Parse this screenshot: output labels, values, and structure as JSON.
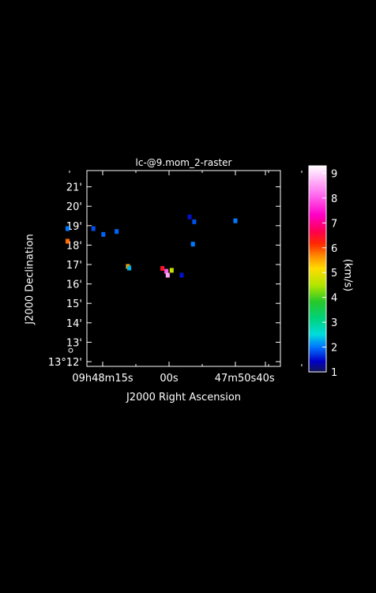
{
  "chart_data": {
    "type": "heatmap",
    "title": "lc-@9.mom_2-raster",
    "xlabel": "J2000 Right Ascension",
    "ylabel": "J2000 Declination",
    "colorbar_label": "(km/s)",
    "x_ticks": [
      "09h48m15s",
      "00s",
      "47m50s",
      "40s"
    ],
    "y_ticks": [
      "13°12'",
      "13'",
      "14'",
      "15'",
      "16'",
      "17'",
      "18'",
      "19'",
      "20'",
      "21'"
    ],
    "colorbar": {
      "min": 1,
      "max": 9.3,
      "ticks": [
        1,
        2,
        3,
        4,
        5,
        6,
        7,
        8,
        9
      ],
      "colormap": "rainbow"
    },
    "blobs": [
      {
        "ra_s": 15.3,
        "dec_min": 18.85,
        "value": 2.0
      },
      {
        "ra_s": 15.3,
        "dec_min": 18.2,
        "value": 5.8
      },
      {
        "ra_s": 11.4,
        "dec_min": 18.85,
        "value": 1.8
      },
      {
        "ra_s": 9.9,
        "dec_min": 18.55,
        "value": 1.9
      },
      {
        "ra_s": 7.9,
        "dec_min": 18.7,
        "value": 1.9
      },
      {
        "ra_s": 6.2,
        "dec_min": 16.9,
        "value": 5.5
      },
      {
        "ra_s": 6.0,
        "dec_min": 16.82,
        "value": 2.3
      },
      {
        "ra_s": 1.0,
        "dec_min": 16.8,
        "value": 6.4
      },
      {
        "ra_s": 0.4,
        "dec_min": 16.65,
        "value": 8.0
      },
      {
        "ra_s": -0.4,
        "dec_min": 16.7,
        "value": 4.6
      },
      {
        "ra_s": 0.2,
        "dec_min": 16.45,
        "value": 8.6
      },
      {
        "ra_s": -1.9,
        "dec_min": 16.45,
        "value": 1.5
      },
      {
        "ra_s": -3.8,
        "dec_min": 19.2,
        "value": 1.8
      },
      {
        "ra_s": -3.1,
        "dec_min": 19.45,
        "value": 1.5
      },
      {
        "ra_s": -3.6,
        "dec_min": 18.05,
        "value": 2.0
      },
      {
        "ra_s": -10.0,
        "dec_min": 19.25,
        "value": 2.0
      }
    ],
    "beam": {
      "ra_s": 15.3,
      "dec_min": 12.7
    }
  }
}
